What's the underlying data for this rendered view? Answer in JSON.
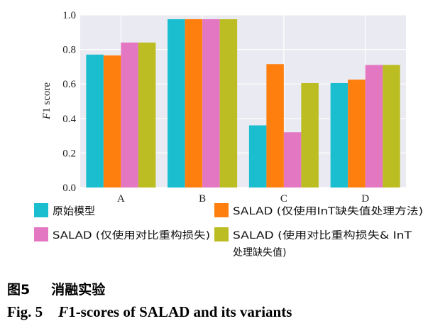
{
  "chart_data": {
    "type": "bar",
    "categories": [
      "A",
      "B",
      "C",
      "D"
    ],
    "series": [
      {
        "name": "原始模型",
        "color": "#1ABECF",
        "values": [
          0.77,
          0.975,
          0.36,
          0.605
        ]
      },
      {
        "name": "SALAD (仅使用InT缺失值处理方法)",
        "color": "#FF7F0E",
        "values": [
          0.765,
          0.975,
          0.715,
          0.625
        ]
      },
      {
        "name": "SALAD (仅使用对比重构损失)",
        "color": "#E377C2",
        "values": [
          0.84,
          0.975,
          0.32,
          0.71
        ]
      },
      {
        "name": "SALAD (使用对比重构损失& InT处理缺失值)",
        "color": "#BCBD22",
        "values": [
          0.84,
          0.975,
          0.605,
          0.71
        ]
      }
    ],
    "ylabel": "F1 score",
    "ylim": [
      0.0,
      1.0
    ],
    "yticks": [
      "0.0",
      "0.2",
      "0.4",
      "0.6",
      "0.8",
      "1.0"
    ],
    "grid": true,
    "legend_position": "bottom"
  },
  "legend": {
    "item1": "原始模型",
    "item2": "SALAD (仅使用InT缺失值处理方法)",
    "item3": "SALAD (仅使用对比重构损失)",
    "item4_line1": "SALAD (使用对比重构损失& InT",
    "item4_line2": "处理缺失值)"
  },
  "ylabel_italic": "F",
  "ylabel_rest": "1 score",
  "caption": {
    "zh_num": "图5",
    "zh_text": "消融实验",
    "en_num": "Fig. 5",
    "en_italic": "F",
    "en_text": "1-scores of SALAD and its variants"
  }
}
